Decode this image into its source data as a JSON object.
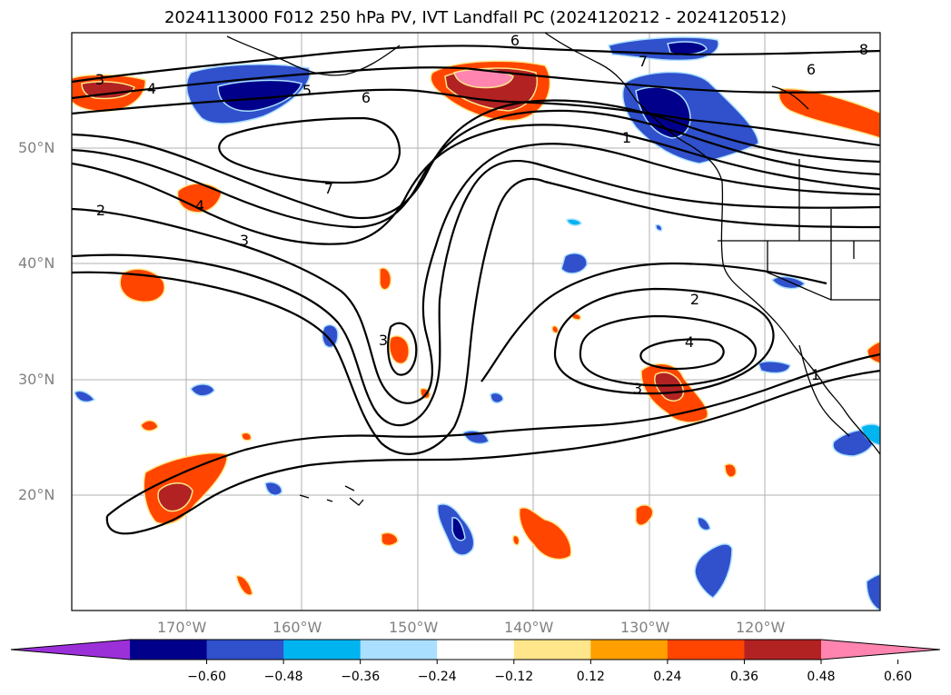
{
  "title": "2024113000 F012 250 hPa PV, IVT Landfall PC (2024120212 - 2024120512)",
  "map": {
    "lon_range": [
      -180,
      -110
    ],
    "lat_range": [
      10,
      60
    ],
    "lat_ticks": [
      {
        "value": 50,
        "label": "50°N"
      },
      {
        "value": 40,
        "label": "40°N"
      },
      {
        "value": 30,
        "label": "30°N"
      },
      {
        "value": 20,
        "label": "20°N"
      }
    ],
    "lon_ticks": [
      {
        "value": -170,
        "label": "170°W"
      },
      {
        "value": -160,
        "label": "160°W"
      },
      {
        "value": -150,
        "label": "150°W"
      },
      {
        "value": -140,
        "label": "140°W"
      },
      {
        "value": -130,
        "label": "130°W"
      },
      {
        "value": -120,
        "label": "120°W"
      }
    ],
    "gridlines": true,
    "contour_labels": [
      "3",
      "4",
      "5",
      "6",
      "7",
      "2",
      "3",
      "4",
      "6",
      "7",
      "8",
      "1",
      "2",
      "3",
      "4",
      "1",
      "6",
      "3"
    ]
  },
  "colorbar": {
    "ticks": [
      "−0.60",
      "−0.48",
      "−0.36",
      "−0.24",
      "−0.12",
      "0.12",
      "0.24",
      "0.36",
      "0.48",
      "0.60"
    ],
    "colors": [
      "#9b30d9",
      "#00008b",
      "#3050cc",
      "#00b4f0",
      "#aadfff",
      "#ffffff",
      "#ffe68a",
      "#ffa000",
      "#ff4500",
      "#b22222",
      "#ff85b0"
    ]
  }
}
